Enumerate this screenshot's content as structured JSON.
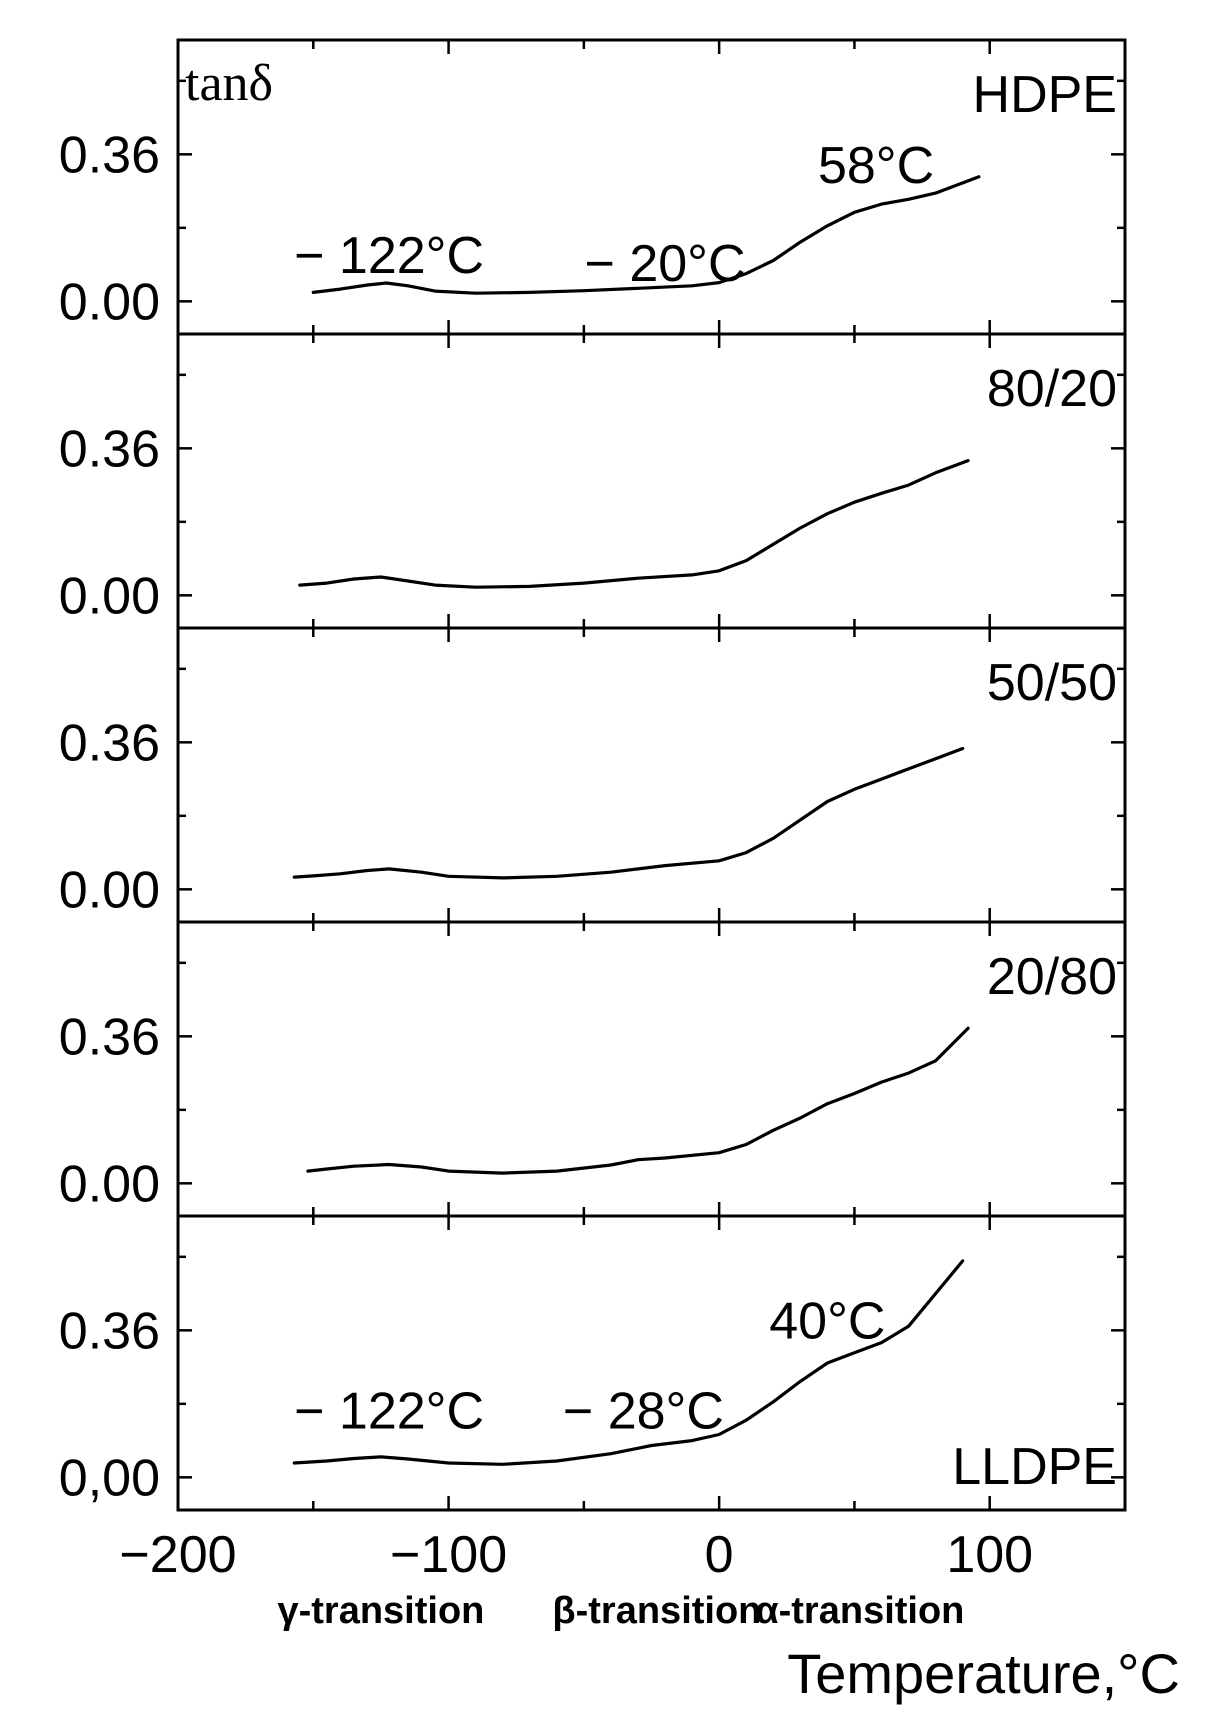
{
  "chart_data": {
    "type": "line",
    "ylabel": "tanδ",
    "xlabel": "Temperature,°C",
    "x_ticks": [
      "−200",
      "−100",
      "0",
      "100"
    ],
    "x_tick_values": [
      -200,
      -100,
      0,
      100
    ],
    "xlim": [
      -200,
      150
    ],
    "ylim": [
      -0.08,
      0.64
    ],
    "transitions": [
      "γ-transition",
      "β-transition",
      "α-transition"
    ],
    "panels": [
      {
        "name": "HDPE",
        "y_tick_labels": [
          "0.36",
          "0.00"
        ],
        "y_tick_values": [
          0.36,
          0.0
        ],
        "annotations": [
          {
            "text": "− 122°C",
            "x": -122,
            "y": 0.07
          },
          {
            "text": "− 20°C",
            "x": -20,
            "y": 0.05
          },
          {
            "text": "58°C",
            "x": 58,
            "y": 0.29
          }
        ],
        "points": [
          [
            -150,
            0.022
          ],
          [
            -140,
            0.03
          ],
          [
            -130,
            0.04
          ],
          [
            -123,
            0.045
          ],
          [
            -115,
            0.038
          ],
          [
            -105,
            0.025
          ],
          [
            -90,
            0.02
          ],
          [
            -70,
            0.022
          ],
          [
            -50,
            0.026
          ],
          [
            -30,
            0.032
          ],
          [
            -10,
            0.038
          ],
          [
            0,
            0.046
          ],
          [
            10,
            0.068
          ],
          [
            20,
            0.1
          ],
          [
            30,
            0.145
          ],
          [
            40,
            0.185
          ],
          [
            50,
            0.218
          ],
          [
            60,
            0.238
          ],
          [
            70,
            0.25
          ],
          [
            80,
            0.265
          ],
          [
            90,
            0.29
          ],
          [
            96,
            0.305
          ]
        ]
      },
      {
        "name": "80/20",
        "y_tick_labels": [
          "0.36",
          "0.00"
        ],
        "y_tick_values": [
          0.36,
          0.0
        ],
        "annotations": [],
        "points": [
          [
            -155,
            0.025
          ],
          [
            -145,
            0.03
          ],
          [
            -135,
            0.04
          ],
          [
            -125,
            0.045
          ],
          [
            -115,
            0.035
          ],
          [
            -105,
            0.025
          ],
          [
            -90,
            0.02
          ],
          [
            -70,
            0.022
          ],
          [
            -50,
            0.03
          ],
          [
            -30,
            0.042
          ],
          [
            -10,
            0.05
          ],
          [
            0,
            0.06
          ],
          [
            10,
            0.085
          ],
          [
            20,
            0.125
          ],
          [
            30,
            0.165
          ],
          [
            40,
            0.2
          ],
          [
            50,
            0.228
          ],
          [
            60,
            0.25
          ],
          [
            70,
            0.27
          ],
          [
            80,
            0.3
          ],
          [
            92,
            0.33
          ]
        ]
      },
      {
        "name": "50/50",
        "y_tick_labels": [
          "0.36",
          "0.00"
        ],
        "y_tick_values": [
          0.36,
          0.0
        ],
        "annotations": [],
        "points": [
          [
            -157,
            0.03
          ],
          [
            -150,
            0.033
          ],
          [
            -140,
            0.038
          ],
          [
            -130,
            0.046
          ],
          [
            -122,
            0.05
          ],
          [
            -110,
            0.042
          ],
          [
            -100,
            0.032
          ],
          [
            -80,
            0.028
          ],
          [
            -60,
            0.032
          ],
          [
            -40,
            0.042
          ],
          [
            -20,
            0.058
          ],
          [
            0,
            0.07
          ],
          [
            10,
            0.09
          ],
          [
            20,
            0.125
          ],
          [
            30,
            0.17
          ],
          [
            40,
            0.215
          ],
          [
            50,
            0.245
          ],
          [
            60,
            0.27
          ],
          [
            70,
            0.295
          ],
          [
            80,
            0.32
          ],
          [
            90,
            0.345
          ]
        ]
      },
      {
        "name": "20/80",
        "y_tick_labels": [
          "0.36",
          "0.00"
        ],
        "y_tick_values": [
          0.36,
          0.0
        ],
        "annotations": [],
        "points": [
          [
            -152,
            0.03
          ],
          [
            -145,
            0.035
          ],
          [
            -135,
            0.042
          ],
          [
            -122,
            0.046
          ],
          [
            -110,
            0.04
          ],
          [
            -100,
            0.03
          ],
          [
            -80,
            0.025
          ],
          [
            -60,
            0.03
          ],
          [
            -40,
            0.045
          ],
          [
            -30,
            0.058
          ],
          [
            -20,
            0.062
          ],
          [
            0,
            0.075
          ],
          [
            10,
            0.095
          ],
          [
            20,
            0.13
          ],
          [
            30,
            0.16
          ],
          [
            40,
            0.195
          ],
          [
            50,
            0.22
          ],
          [
            60,
            0.248
          ],
          [
            70,
            0.27
          ],
          [
            80,
            0.3
          ],
          [
            92,
            0.38
          ]
        ]
      },
      {
        "name": "LLDPE",
        "y_tick_labels": [
          "0.36",
          "0,00"
        ],
        "y_tick_values": [
          0.36,
          0.0
        ],
        "annotations": [
          {
            "text": "− 122°C",
            "x": -122,
            "y": 0.12
          },
          {
            "text": "− 28°C",
            "x": -28,
            "y": 0.12
          },
          {
            "text": "40°C",
            "x": 40,
            "y": 0.34
          }
        ],
        "points": [
          [
            -157,
            0.035
          ],
          [
            -145,
            0.04
          ],
          [
            -135,
            0.046
          ],
          [
            -125,
            0.05
          ],
          [
            -115,
            0.045
          ],
          [
            -100,
            0.035
          ],
          [
            -80,
            0.032
          ],
          [
            -60,
            0.04
          ],
          [
            -40,
            0.058
          ],
          [
            -25,
            0.078
          ],
          [
            -10,
            0.09
          ],
          [
            0,
            0.105
          ],
          [
            10,
            0.14
          ],
          [
            20,
            0.185
          ],
          [
            30,
            0.235
          ],
          [
            40,
            0.28
          ],
          [
            50,
            0.305
          ],
          [
            60,
            0.33
          ],
          [
            70,
            0.37
          ],
          [
            80,
            0.45
          ],
          [
            90,
            0.53
          ]
        ]
      }
    ]
  }
}
